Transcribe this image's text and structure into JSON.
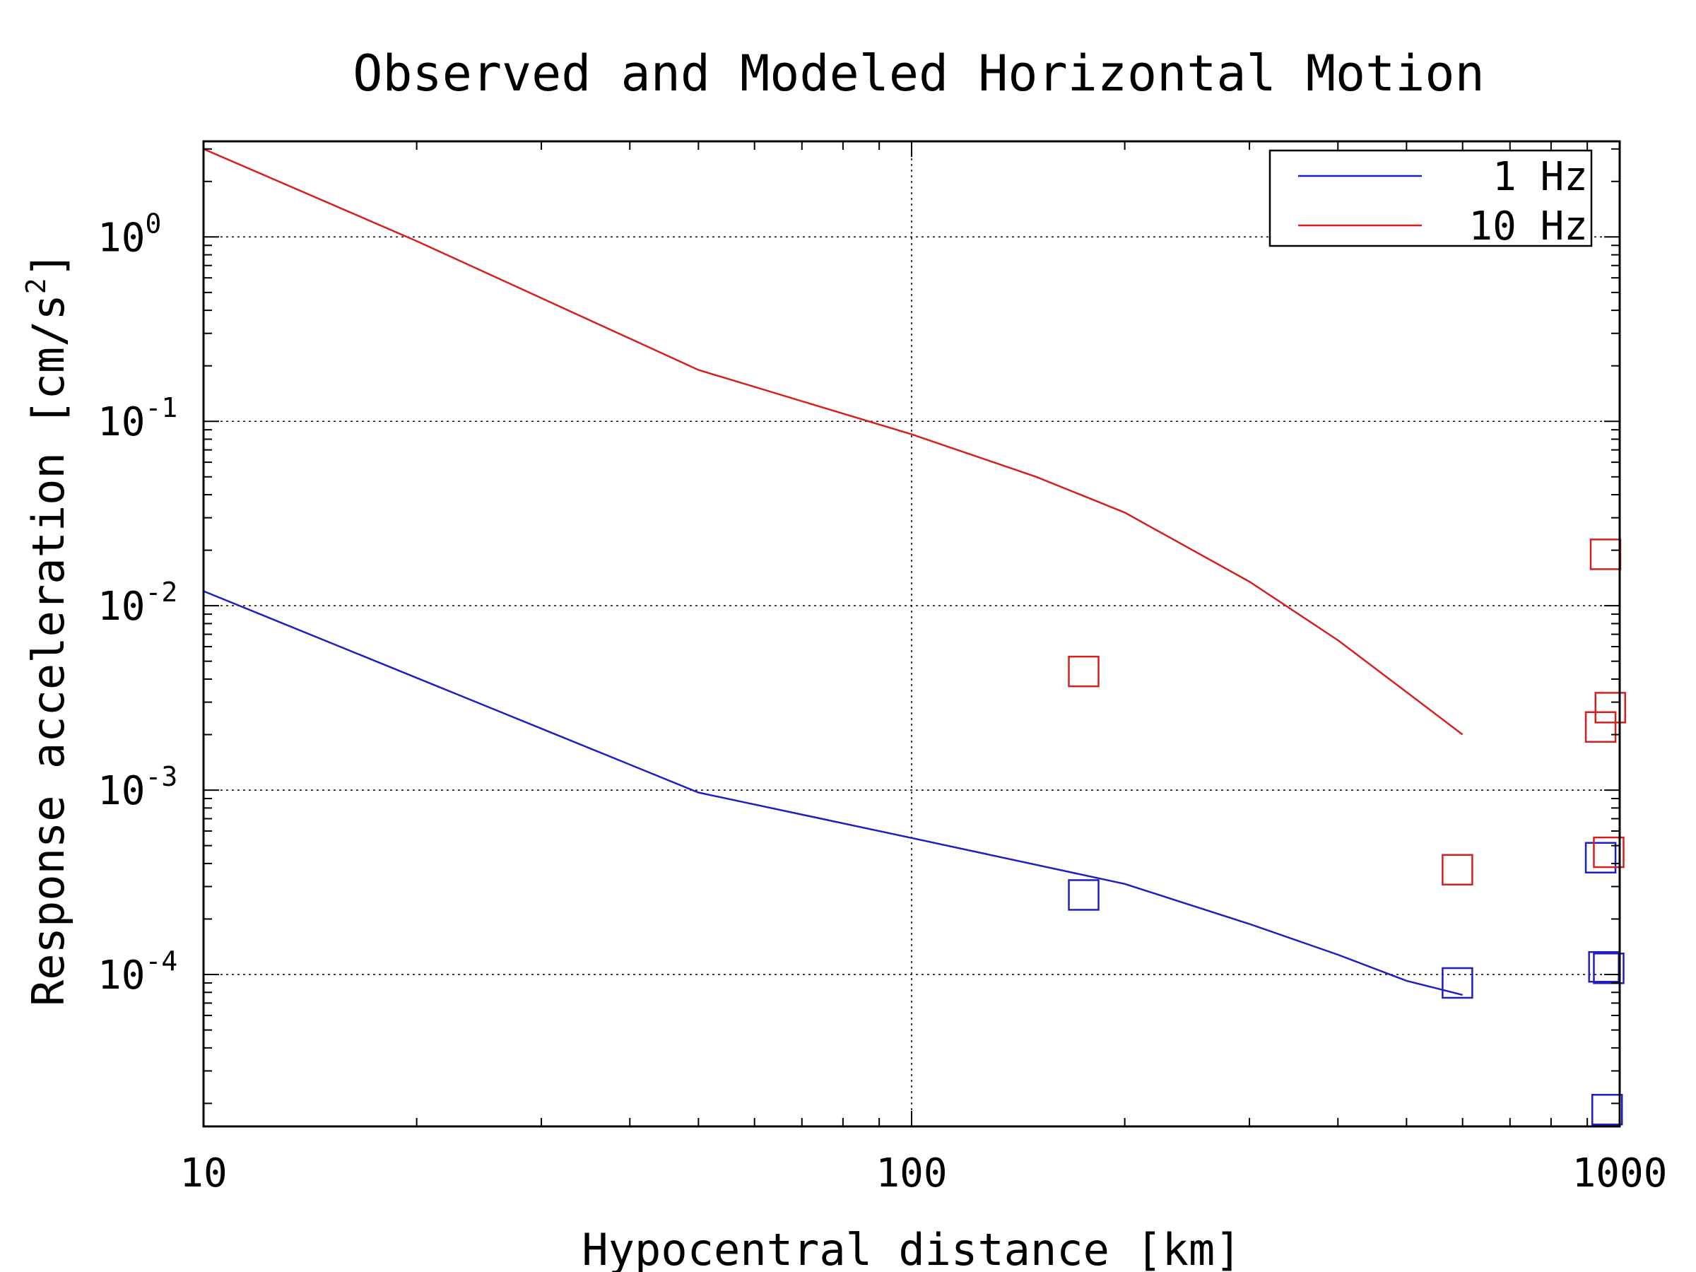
{
  "chart_data": {
    "type": "line",
    "title": "Observed and Modeled Horizontal Motion",
    "xlabel": "Hypocentral distance [km]",
    "ylabel_main": "Response acceleration [cm/s",
    "ylabel_sup": "2",
    "ylabel_close": "]",
    "x_scale": "log",
    "y_scale": "log",
    "xlim": [
      10,
      1000
    ],
    "ylim": [
      1.5e-05,
      3.3
    ],
    "grid": true,
    "x_ticks": [
      {
        "value": 10,
        "label": "10"
      },
      {
        "value": 100,
        "label": "100"
      },
      {
        "value": 1000,
        "label": "1000"
      }
    ],
    "y_ticks": [
      {
        "value": 1,
        "base": "10",
        "exp": "0"
      },
      {
        "value": 0.1,
        "base": "10",
        "exp": "-1"
      },
      {
        "value": 0.01,
        "base": "10",
        "exp": "-2"
      },
      {
        "value": 0.001,
        "base": "10",
        "exp": "-3"
      },
      {
        "value": 0.0001,
        "base": "10",
        "exp": "-4"
      }
    ],
    "legend": {
      "placement": "top-right",
      "entries": [
        {
          "label": "1 Hz",
          "color": "#1f1fbf"
        },
        {
          "label": "10 Hz",
          "color": "#d62020"
        }
      ]
    },
    "series": [
      {
        "name": "1 Hz",
        "color": "#1f1fbf",
        "model": [
          {
            "x": 10,
            "y": 0.012
          },
          {
            "x": 50,
            "y": 0.00097
          },
          {
            "x": 100,
            "y": 0.00055
          },
          {
            "x": 200,
            "y": 0.00031
          },
          {
            "x": 300,
            "y": 0.000188
          },
          {
            "x": 400,
            "y": 0.000128
          },
          {
            "x": 500,
            "y": 9.25e-05
          },
          {
            "x": 600,
            "y": 7.75e-05
          }
        ],
        "observed": [
          {
            "x": 175,
            "y": 0.00027
          },
          {
            "x": 590,
            "y": 9e-05
          },
          {
            "x": 940,
            "y": 0.00043
          },
          {
            "x": 950,
            "y": 0.00011
          },
          {
            "x": 965,
            "y": 0.000108
          },
          {
            "x": 960,
            "y": 1.85e-05
          }
        ]
      },
      {
        "name": "10 Hz",
        "color": "#d62020",
        "model": [
          {
            "x": 10,
            "y": 3.0
          },
          {
            "x": 20,
            "y": 0.95
          },
          {
            "x": 50,
            "y": 0.19
          },
          {
            "x": 100,
            "y": 0.085
          },
          {
            "x": 150,
            "y": 0.05
          },
          {
            "x": 200,
            "y": 0.032
          },
          {
            "x": 300,
            "y": 0.0135
          },
          {
            "x": 400,
            "y": 0.0065
          },
          {
            "x": 500,
            "y": 0.0034
          },
          {
            "x": 600,
            "y": 0.002
          }
        ],
        "observed": [
          {
            "x": 175,
            "y": 0.0044
          },
          {
            "x": 590,
            "y": 0.00037
          },
          {
            "x": 955,
            "y": 0.019
          },
          {
            "x": 970,
            "y": 0.0028
          },
          {
            "x": 940,
            "y": 0.0022
          },
          {
            "x": 965,
            "y": 0.00046
          }
        ]
      }
    ]
  }
}
